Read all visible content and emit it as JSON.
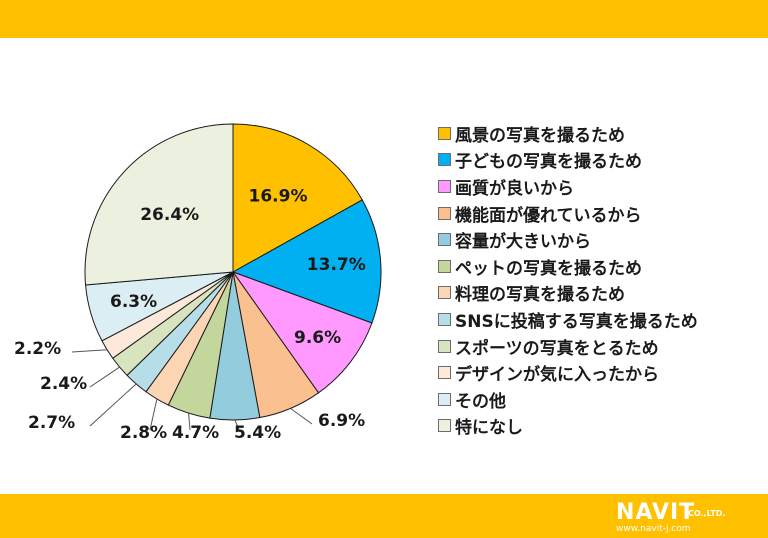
{
  "colors": {
    "band": "#FFC000",
    "logo_text": "#FFFFFF"
  },
  "logo": {
    "name": "NAVIT",
    "company_suffix": "CO.,LTD.",
    "url": "www.navit-j.com"
  },
  "chart_data": {
    "type": "pie",
    "title": "",
    "start_angle_deg": 0,
    "direction": "clockwise",
    "slices": [
      {
        "label": "風景の写真を撮るため",
        "value": 16.9,
        "display": "16.9%",
        "color": "#FFC000"
      },
      {
        "label": "子どもの写真を撮るため",
        "value": 13.7,
        "display": "13.7%",
        "color": "#00B0F0"
      },
      {
        "label": "画質が良いから",
        "value": 9.6,
        "display": "9.6%",
        "color": "#FF99FF"
      },
      {
        "label": "機能面が優れているから",
        "value": 6.9,
        "display": "6.9%",
        "color": "#FAC090"
      },
      {
        "label": "容量が大きいから",
        "value": 5.4,
        "display": "5.4%",
        "color": "#93CDDD"
      },
      {
        "label": "ペットの写真を撮るため",
        "value": 4.7,
        "display": "4.7%",
        "color": "#C3D69B"
      },
      {
        "label": "料理の写真を撮るため",
        "value": 2.8,
        "display": "2.8%",
        "color": "#FCD5B5"
      },
      {
        "label": "SNSに投稿する写真を撮るため",
        "value": 2.7,
        "display": "2.7%",
        "color": "#B7DEE8"
      },
      {
        "label": "スポーツの写真をとるため",
        "value": 2.4,
        "display": "2.4%",
        "color": "#D7E4BD"
      },
      {
        "label": "デザインが気に入ったから",
        "value": 2.2,
        "display": "2.2%",
        "color": "#FDE9D9"
      },
      {
        "label": "その他",
        "value": 6.3,
        "display": "6.3%",
        "color": "#DBEEF4"
      },
      {
        "label": "特になし",
        "value": 26.4,
        "display": "26.4%",
        "color": "#EBF1DE"
      }
    ],
    "legend_position": "right"
  }
}
